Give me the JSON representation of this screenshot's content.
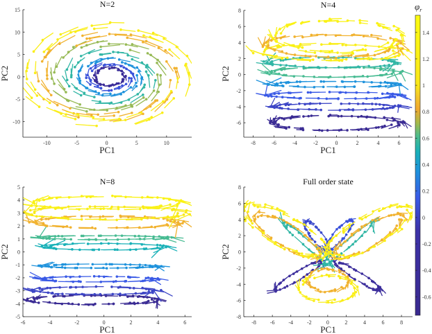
{
  "chart_data": [
    {
      "type": "scatter",
      "title": "N=2",
      "xlabel": "PC1",
      "ylabel": "PC2",
      "xlim": [
        -14,
        14.2
      ],
      "ylim": [
        -13.5,
        15
      ],
      "xticks": [
        "-10",
        "-5",
        "0",
        "5",
        "10"
      ],
      "xtick_values": [
        -10,
        -5,
        0,
        5,
        10
      ],
      "yticks": [
        "15",
        "10",
        "5",
        "0",
        "-5",
        "-10"
      ],
      "ytick_values": [
        15,
        10,
        5,
        0,
        -5,
        -10
      ],
      "trajectory_loops": [
        {
          "cx": 0.5,
          "cy": 0,
          "rx": 2.5,
          "ry": 2,
          "rot": 0,
          "value": -0.5,
          "n": 30
        },
        {
          "cx": 0.5,
          "cy": 0,
          "rx": 3.6,
          "ry": 2.8,
          "rot": 0,
          "value": 0.1,
          "n": 30
        },
        {
          "cx": 0.5,
          "cy": 0,
          "rx": 5,
          "ry": 4,
          "rot": 0,
          "value": 0.35,
          "n": 32
        },
        {
          "cx": 0.5,
          "cy": 0,
          "rx": 7,
          "ry": 5.5,
          "rot": 0,
          "value": 0.55,
          "n": 34
        },
        {
          "cx": 0.3,
          "cy": 0,
          "rx": 9,
          "ry": 7.5,
          "rot": 0,
          "value": 0.7,
          "n": 38
        },
        {
          "cx": 0,
          "cy": 0,
          "rx": 11,
          "ry": 9,
          "rot": 0,
          "value": 0.85,
          "n": 44
        },
        {
          "cx": 0,
          "cy": 0.5,
          "rx": 13,
          "ry": 10.5,
          "rot": 0,
          "value": 1.2,
          "n": 50
        }
      ]
    },
    {
      "type": "scatter",
      "title": "N=4",
      "xlabel": "PC1",
      "ylabel": "PC2",
      "xlim": [
        -8.9,
        7.3
      ],
      "ylim": [
        -7.8,
        8
      ],
      "xticks": [
        "-8",
        "-6",
        "-4",
        "-2",
        "0",
        "2",
        "4",
        "6"
      ],
      "xtick_values": [
        -8,
        -6,
        -4,
        -2,
        0,
        2,
        4,
        6
      ],
      "yticks": [
        "8",
        "6",
        "4",
        "2",
        "0",
        "-2",
        "-4",
        "-6"
      ],
      "ytick_values": [
        8,
        6,
        4,
        2,
        0,
        -2,
        -4,
        -6
      ],
      "trajectory_loops": [
        {
          "cx": -0.2,
          "cy": -6,
          "rx": 6.2,
          "ry": 0.9,
          "rot": 0,
          "value": -0.6,
          "n": 60
        },
        {
          "cx": -0.2,
          "cy": -4,
          "rx": 6,
          "ry": 0.4,
          "rot": 0,
          "value": 0.02,
          "n": 45
        },
        {
          "cx": -0.2,
          "cy": -2.6,
          "rx": 6,
          "ry": 0.4,
          "rot": 0,
          "value": 0.15,
          "n": 40
        },
        {
          "cx": -0.2,
          "cy": -1.2,
          "rx": 6,
          "ry": 0.35,
          "rot": 0,
          "value": 0.35,
          "n": 40
        },
        {
          "cx": -0.3,
          "cy": 0.3,
          "rx": 6.2,
          "ry": 0.6,
          "rot": 0,
          "value": 0.6,
          "n": 40
        },
        {
          "cx": -0.3,
          "cy": 1.5,
          "rx": 6.2,
          "ry": 0.6,
          "rot": 0,
          "value": 0.55,
          "n": 40
        },
        {
          "cx": -0.5,
          "cy": 2.8,
          "rx": 6.8,
          "ry": 1.0,
          "rot": 0,
          "value": 1.2,
          "n": 45
        },
        {
          "cx": -0.3,
          "cy": 3.6,
          "rx": 6.3,
          "ry": 1.4,
          "rot": 0,
          "value": 0.85,
          "n": 45
        },
        {
          "cx": 0.2,
          "cy": 4.8,
          "rx": 5.8,
          "ry": 2.0,
          "rot": 0,
          "value": 1.3,
          "n": 50
        }
      ]
    },
    {
      "type": "scatter",
      "title": "N=8",
      "xlabel": "PC1",
      "ylabel": "PC2",
      "xlim": [
        -6,
        6.5
      ],
      "ylim": [
        -5,
        5
      ],
      "xticks": [
        "-6",
        "-4",
        "-2",
        "0",
        "2",
        "4",
        "6"
      ],
      "xtick_values": [
        -6,
        -4,
        -2,
        0,
        2,
        4,
        6
      ],
      "yticks": [
        "5",
        "4",
        "3",
        "2",
        "1",
        "0",
        "-1",
        "-2",
        "-3",
        "-4",
        "-5"
      ],
      "ytick_values": [
        5,
        4,
        3,
        2,
        1,
        0,
        -1,
        -2,
        -3,
        -4,
        -5
      ],
      "trajectory_loops": [
        {
          "cx": -0.8,
          "cy": -3.7,
          "rx": 4.6,
          "ry": 0.35,
          "rot": 0,
          "value": -0.6,
          "n": 55
        },
        {
          "cx": -0.6,
          "cy": -3.0,
          "rx": 4.4,
          "ry": 0.3,
          "rot": 0,
          "value": 0.02,
          "n": 45
        },
        {
          "cx": -0.5,
          "cy": -2.1,
          "rx": 4.3,
          "ry": 0.2,
          "rot": 0,
          "value": 0.15,
          "n": 40
        },
        {
          "cx": -0.3,
          "cy": -1.1,
          "rx": 4.2,
          "ry": 0.15,
          "rot": 0,
          "value": 0.35,
          "n": 40
        },
        {
          "cx": 0,
          "cy": 0.4,
          "rx": 4.4,
          "ry": 0.25,
          "rot": 0,
          "value": 0.5,
          "n": 40
        },
        {
          "cx": 0,
          "cy": 1.1,
          "rx": 4.6,
          "ry": 0.15,
          "rot": 0,
          "value": 0.6,
          "n": 40
        },
        {
          "cx": 0.2,
          "cy": 2.3,
          "rx": 5.3,
          "ry": 0.45,
          "rot": 0,
          "value": 0.85,
          "n": 45
        },
        {
          "cx": 0.2,
          "cy": 3.0,
          "rx": 5.8,
          "ry": 0.5,
          "rot": 0,
          "value": 1.1,
          "n": 45
        },
        {
          "cx": 0,
          "cy": 3.8,
          "rx": 5.6,
          "ry": 0.5,
          "rot": 0,
          "value": 1.3,
          "n": 45
        }
      ]
    },
    {
      "type": "scatter",
      "title": "Full order state",
      "xlabel": "PC1",
      "ylabel": "PC2",
      "xlim": [
        -9.1,
        9.2
      ],
      "ylim": [
        -8,
        8
      ],
      "xticks": [
        "-8",
        "-6",
        "-4",
        "-2",
        "0",
        "2",
        "4",
        "6",
        "8"
      ],
      "xtick_values": [
        -8,
        -6,
        -4,
        -2,
        0,
        2,
        4,
        6,
        8
      ],
      "yticks": [
        "8",
        "6",
        "4",
        "2",
        "0",
        "-2",
        "-4",
        "-6",
        "-8"
      ],
      "ytick_values": [
        8,
        6,
        4,
        2,
        0,
        -2,
        -4,
        -6,
        -8
      ],
      "trajectory_loops": [
        {
          "cx": -3.3,
          "cy": -3,
          "rx": 3,
          "ry": 0.5,
          "rot": 35,
          "value": -0.4,
          "n": 30
        },
        {
          "cx": 3.3,
          "cy": -3,
          "rx": 3,
          "ry": 0.5,
          "rot": -35,
          "value": -0.4,
          "n": 30
        },
        {
          "cx": -1.2,
          "cy": 2,
          "rx": 2.2,
          "ry": 0.6,
          "rot": -55,
          "value": 0.05,
          "n": 30
        },
        {
          "cx": 1.2,
          "cy": 2,
          "rx": 2.2,
          "ry": 0.6,
          "rot": 55,
          "value": 0.1,
          "n": 30
        },
        {
          "cx": -2.2,
          "cy": 1,
          "rx": 3.6,
          "ry": 0.4,
          "rot": -45,
          "value": 0.55,
          "n": 25
        },
        {
          "cx": 2.2,
          "cy": 1,
          "rx": 3.6,
          "ry": 0.4,
          "rot": 45,
          "value": 0.55,
          "n": 25
        },
        {
          "cx": 0,
          "cy": -3.5,
          "rx": 2.2,
          "ry": 1.4,
          "rot": 0,
          "value": 0.85,
          "n": 30
        },
        {
          "cx": -4.5,
          "cy": 2,
          "rx": 4.3,
          "ry": 1.3,
          "rot": -35,
          "value": 0.85,
          "n": 40
        },
        {
          "cx": 4.5,
          "cy": 2,
          "rx": 4.3,
          "ry": 1.3,
          "rot": 35,
          "value": 0.85,
          "n": 40
        },
        {
          "cx": 0,
          "cy": -4.5,
          "rx": 3,
          "ry": 1.6,
          "rot": 0,
          "value": 1.2,
          "n": 30
        },
        {
          "cx": -4.6,
          "cy": 2.6,
          "rx": 5.3,
          "ry": 1.8,
          "rot": -33,
          "value": 1.2,
          "n": 50
        },
        {
          "cx": 4.6,
          "cy": 2.6,
          "rx": 5.3,
          "ry": 1.8,
          "rot": 33,
          "value": 1.2,
          "n": 50
        }
      ]
    }
  ],
  "colorbar": {
    "label": "φr",
    "label_main": "φ",
    "label_sub": "r",
    "range": [
      -0.74,
      1.53
    ],
    "ticks": [
      "1.4",
      "1.2",
      "1",
      "0.8",
      "0.6",
      "0.4",
      "0.2",
      "0",
      "-0.2",
      "-0.4",
      "-0.6"
    ],
    "tick_values": [
      1.4,
      1.2,
      1,
      0.8,
      0.6,
      0.4,
      0.2,
      0,
      -0.2,
      -0.4,
      -0.6
    ],
    "colormap": [
      {
        "value": -0.74,
        "color": "#3a2a8f"
      },
      {
        "value": -0.1,
        "color": "#3d32a8"
      },
      {
        "value": 0.15,
        "color": "#3a5ae6"
      },
      {
        "value": 0.35,
        "color": "#1e92dc"
      },
      {
        "value": 0.5,
        "color": "#1ab1b8"
      },
      {
        "value": 0.62,
        "color": "#50bd8a"
      },
      {
        "value": 0.72,
        "color": "#a9b949"
      },
      {
        "value": 0.82,
        "color": "#f0a830"
      },
      {
        "value": 0.92,
        "color": "#f3c82c"
      },
      {
        "value": 1.0,
        "color": "#f9e61a"
      },
      {
        "value": 1.53,
        "color": "#fbfb12"
      }
    ]
  }
}
